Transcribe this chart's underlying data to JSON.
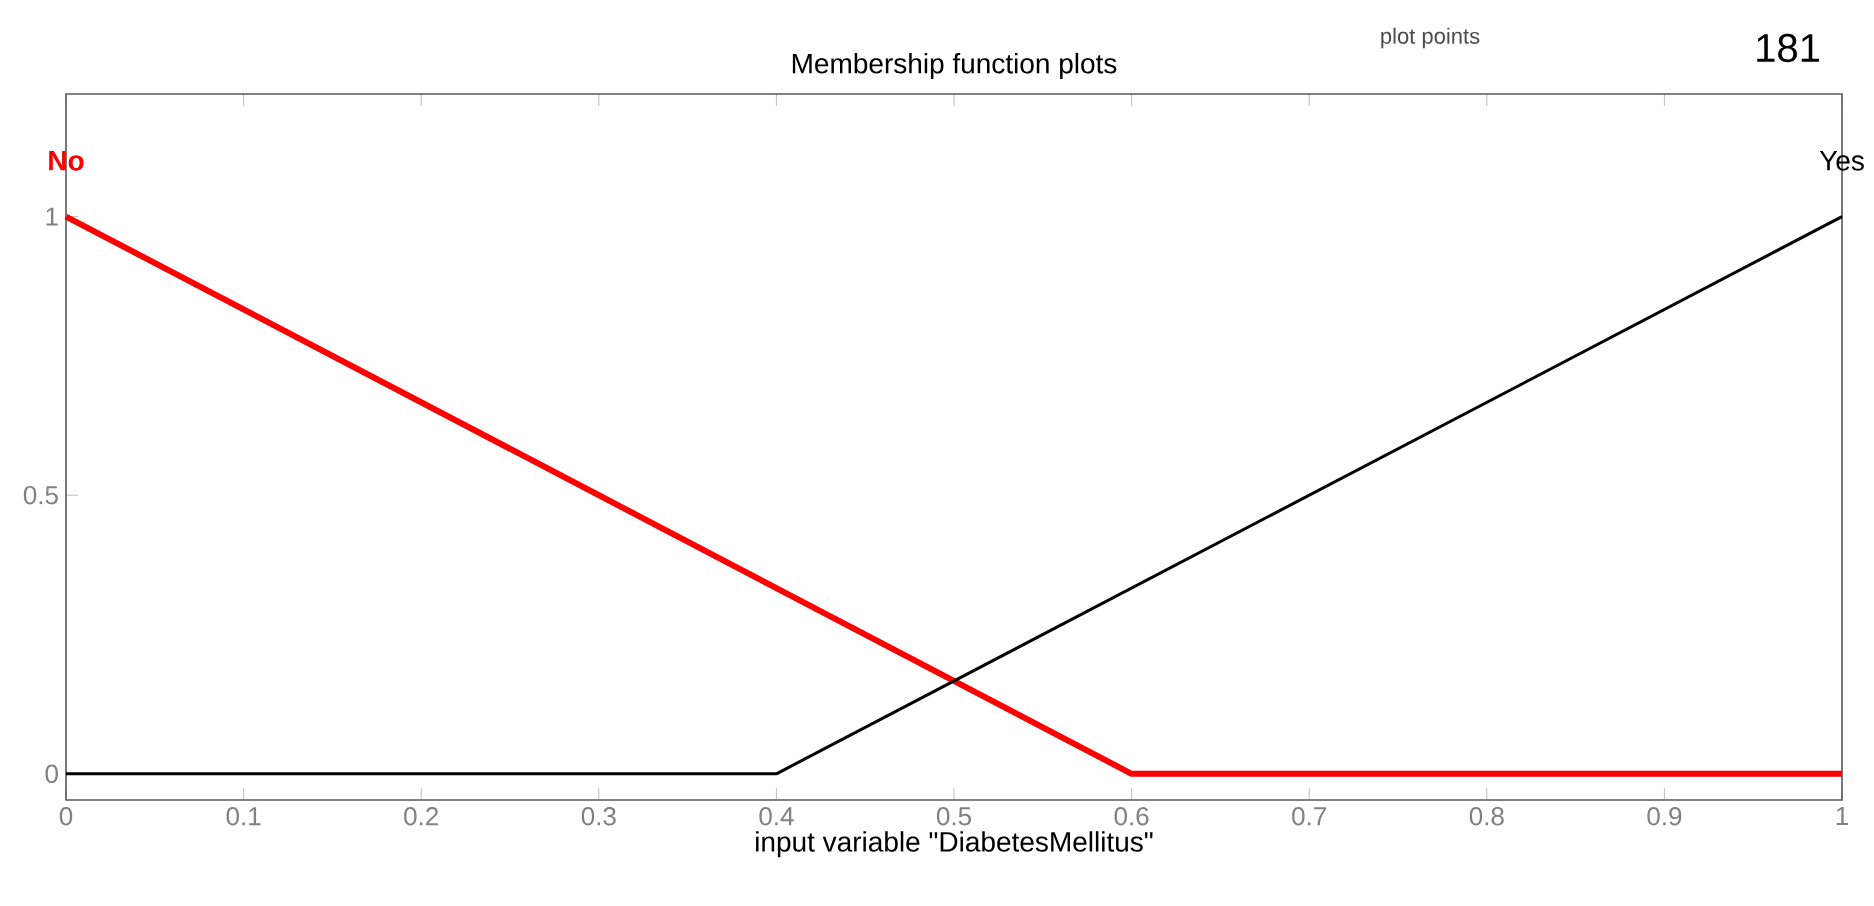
{
  "chart_data": {
    "type": "line",
    "title": "Membership function plots",
    "xlabel": "input variable \"DiabetesMellitus\"",
    "annotations": [
      "plot points",
      "181"
    ],
    "series": [
      {
        "name": "No",
        "color": "#ff0000",
        "x": [
          0,
          0.6,
          1
        ],
        "values": [
          1,
          0,
          0
        ]
      },
      {
        "name": "Yes",
        "color": "#000000",
        "x": [
          0,
          0.4,
          1
        ],
        "values": [
          0,
          0,
          1
        ]
      }
    ],
    "xlim": [
      0,
      1
    ],
    "ylim": [
      -0.047,
      1.22
    ],
    "xticks": [
      0,
      0.1,
      0.2,
      0.3,
      0.4,
      0.5,
      0.6,
      0.7,
      0.8,
      0.9,
      1
    ],
    "yticks": [
      0,
      0.5,
      1
    ],
    "grid": false,
    "marker": "none",
    "line_style": "solid"
  }
}
